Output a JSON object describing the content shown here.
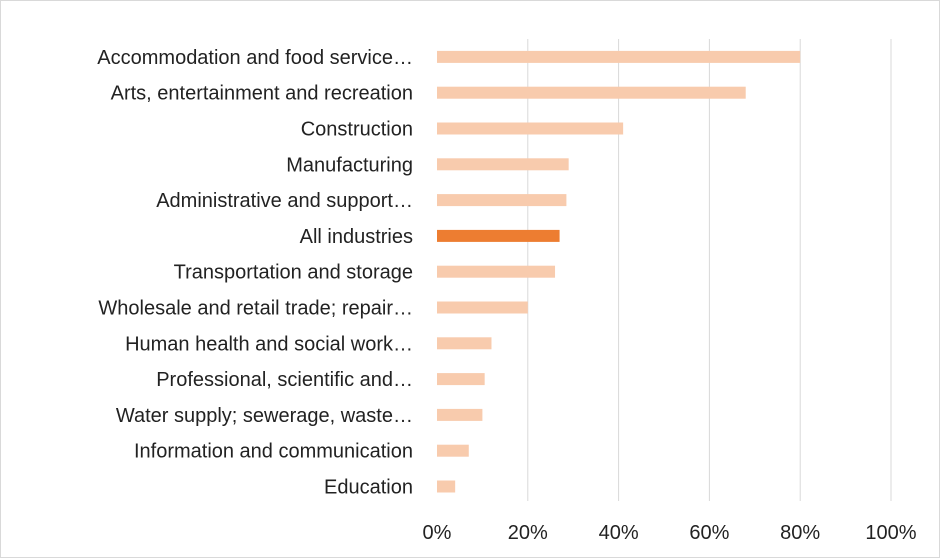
{
  "chart_data": {
    "type": "bar",
    "orientation": "horizontal",
    "categories": [
      "Accommodation and food service…",
      "Arts, entertainment and recreation",
      "Construction",
      "Manufacturing",
      "Administrative and support…",
      "All industries",
      "Transportation and storage",
      "Wholesale and retail trade; repair…",
      "Human health and social work…",
      "Professional, scientific and…",
      "Water supply; sewerage, waste…",
      "Information and communication",
      "Education"
    ],
    "values": [
      80,
      68,
      41,
      29,
      28.5,
      27,
      26,
      20,
      12,
      10.5,
      10,
      7,
      4
    ],
    "highlight_category": "All industries",
    "colors": {
      "default": "#f8cbad",
      "highlight": "#ed7d31",
      "grid": "#d9d9d9"
    },
    "xlim": [
      0,
      100
    ],
    "xticks": [
      "0%",
      "20%",
      "40%",
      "60%",
      "80%",
      "100%"
    ],
    "xtick_values": [
      0,
      20,
      40,
      60,
      80,
      100
    ],
    "grid": true,
    "legend": false,
    "title": "",
    "xlabel": "",
    "ylabel": ""
  }
}
